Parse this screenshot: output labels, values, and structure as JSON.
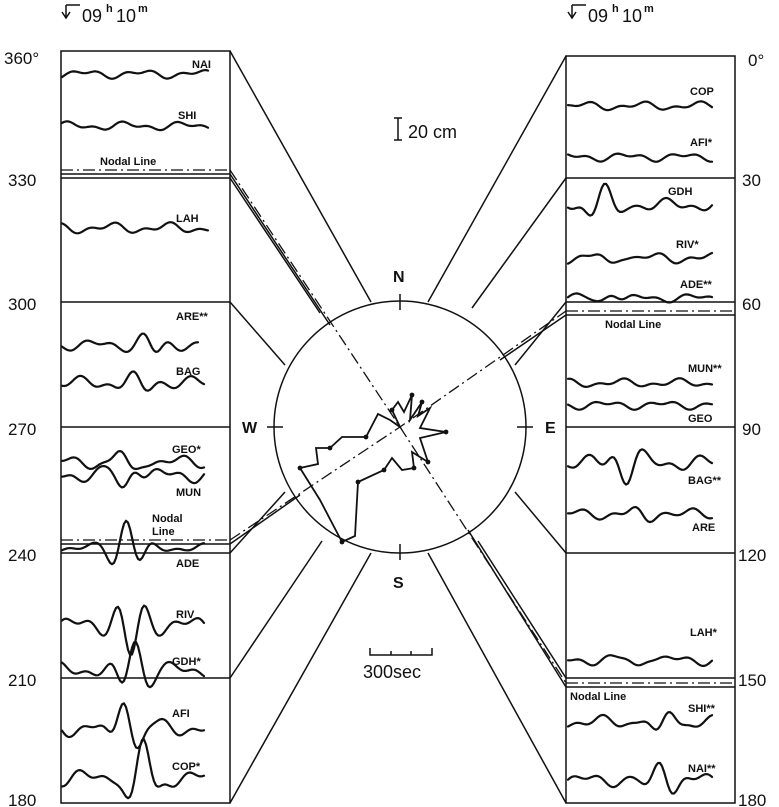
{
  "time_mark": "09",
  "time_h": "h",
  "time_min": "10",
  "time_m": "m",
  "nodal_line": "Nodal Line",
  "nodal_line_short": "Nodal",
  "nodal_line_2": "Line",
  "left_axis": [
    "360°",
    "330",
    "300",
    "270",
    "240",
    "210",
    "180"
  ],
  "right_axis": [
    "0°",
    "30",
    "60",
    "90",
    "120",
    "150",
    "180"
  ],
  "directions": {
    "n": "N",
    "s": "S",
    "e": "E",
    "w": "W"
  },
  "amp_scale": "20 cm",
  "time_scale": "300sec",
  "left_stations": [
    "NAI",
    "SHI",
    "LAH",
    "ARE**",
    "BAG",
    "GEO*",
    "MUN",
    "ADE",
    "RIV",
    "GDH*",
    "AFI",
    "COP*"
  ],
  "right_stations": [
    "COP",
    "AFI*",
    "GDH",
    "RIV*",
    "ADE**",
    "MUN**",
    "GEO",
    "BAG**",
    "ARE",
    "LAH*",
    "SHI**",
    "NAI**"
  ],
  "colors": {
    "ink": "#111111",
    "paper": "#ffffff"
  }
}
